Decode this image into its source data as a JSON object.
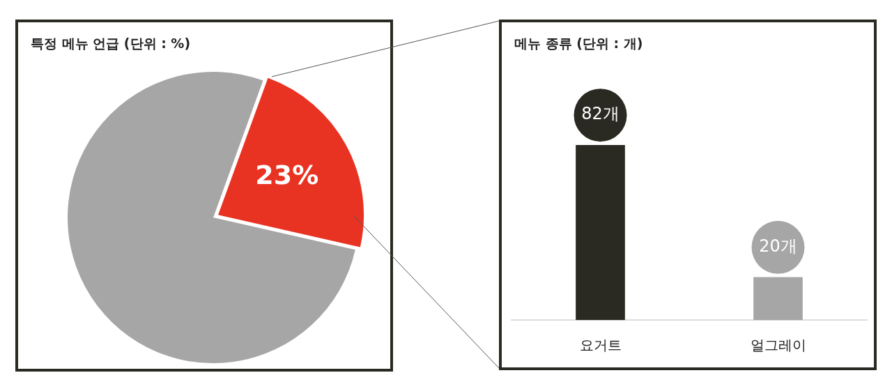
{
  "chart_data": [
    {
      "type": "pie",
      "title": "특정 메뉴 언급 (단위 : %)",
      "categories": [
        null,
        null
      ],
      "values": [
        23,
        77
      ],
      "colors": [
        "#e83323",
        "#a6a6a6"
      ],
      "value_labels": [
        "23%",
        null
      ],
      "legend": false
    },
    {
      "type": "bar",
      "title": "메뉴 종류 (단위 : 개)",
      "categories": [
        "요거트",
        "얼그레이"
      ],
      "values": [
        82,
        20
      ],
      "colors": [
        "#2b2a22",
        "#a6a6a6"
      ],
      "value_labels": [
        "82개",
        "20개"
      ],
      "legend": false
    }
  ]
}
